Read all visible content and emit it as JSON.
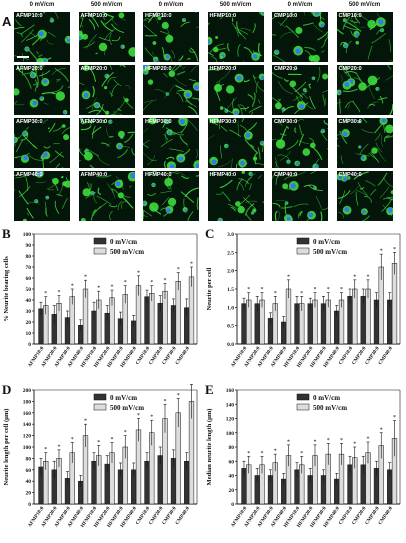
{
  "panel_a": {
    "letter": "A",
    "column_headers": [
      "0 mV/cm",
      "500 mV/cm",
      "0 mV/cm",
      "500 mV/cm",
      "0 mV/cm",
      "500 mV/cm"
    ],
    "row_labels": [
      [
        "AFMP10:0",
        "AFMP10:0",
        "HFMP10:0",
        "HFMP10:0",
        "CMP10:0",
        "CMP10:0"
      ],
      [
        "AFMP20:0",
        "AFMP20:0",
        "HFMP20:0",
        "HFMP20:0",
        "CMP20:0",
        "CMP20:0"
      ],
      [
        "AFMP30:0",
        "AFMP30:0",
        "HFMP30:0",
        "HFMP30:0",
        "CMP30:0",
        "CMP30:0"
      ],
      [
        "AFMP40:0",
        "AFMP40:0",
        "HFMP40:0",
        "HFMP40:0",
        "CMP40:0",
        "CMP40:0"
      ]
    ],
    "tile_bg": "#04150a",
    "neurite_color": "#3ddc3d",
    "nucleus_color": "#3a6cff"
  },
  "colors": {
    "bar_dark": "#333333",
    "bar_light": "#dddddd",
    "axis": "#111111"
  },
  "chart_data": [
    {
      "id": "B",
      "letter": "B",
      "type": "bar",
      "categories": [
        "AFMP10:0",
        "AFMP20:0",
        "AFMP30:0",
        "AFMP40:0",
        "HFMP10:0",
        "HFMP20:0",
        "HFMP30:0",
        "HFMP40:0",
        "CMP10:0",
        "CMP20:0",
        "CMP30:0",
        "CMP40:0"
      ],
      "series": [
        {
          "name": "0 mV/cm",
          "values": [
            32,
            27,
            24,
            17,
            30,
            28,
            23,
            21,
            43,
            37,
            35,
            33
          ],
          "errors": [
            6,
            8,
            6,
            5,
            8,
            7,
            6,
            5,
            6,
            7,
            6,
            8
          ]
        },
        {
          "name": "500 mV/cm",
          "values": [
            35,
            37,
            43,
            50,
            40,
            42,
            45,
            53,
            46,
            48,
            57,
            61
          ],
          "errors": [
            8,
            7,
            7,
            8,
            8,
            7,
            8,
            9,
            7,
            7,
            8,
            9
          ]
        }
      ],
      "ylabel": "% Neurite bearing cells",
      "ylim": [
        0,
        100
      ],
      "yticks": [
        0,
        10,
        20,
        30,
        40,
        50,
        60,
        70,
        80,
        90,
        100
      ],
      "legend": "top-left"
    },
    {
      "id": "C",
      "letter": "C",
      "type": "bar",
      "categories": [
        "AFMP10:0",
        "AFMP20:0",
        "AFMP30:0",
        "AFMP40:0",
        "HFMP10:0",
        "HFMP20:0",
        "HFMP30:0",
        "HFMP40:0",
        "CMP10:0",
        "CMP20:0",
        "CMP30:0",
        "CMP40:0"
      ],
      "series": [
        {
          "name": "0 mV/cm",
          "values": [
            1.1,
            1.1,
            0.7,
            0.6,
            1.1,
            1.1,
            1.1,
            0.9,
            1.3,
            1.3,
            1.2,
            1.2
          ],
          "errors": [
            0.15,
            0.2,
            0.15,
            0.15,
            0.2,
            0.15,
            0.2,
            0.15,
            0.2,
            0.2,
            0.2,
            0.2
          ]
        },
        {
          "name": "500 mV/cm",
          "values": [
            1.2,
            1.2,
            1.1,
            1.5,
            1.1,
            1.2,
            1.2,
            1.2,
            1.5,
            1.5,
            2.1,
            2.2
          ],
          "errors": [
            0.2,
            0.2,
            0.2,
            0.25,
            0.2,
            0.2,
            0.2,
            0.2,
            0.25,
            0.25,
            0.35,
            0.3
          ]
        }
      ],
      "ylabel": "Neurite per cell",
      "ylim": [
        0,
        3.0
      ],
      "yticks": [
        0.0,
        0.5,
        1.0,
        1.5,
        2.0,
        2.5,
        3.0
      ],
      "legend": "top-left"
    },
    {
      "id": "D",
      "letter": "D",
      "type": "bar",
      "categories": [
        "AFMP10:0",
        "AFMP20:0",
        "AFMP30:0",
        "AFMP40:0",
        "HFMP10:0",
        "HFMP20:0",
        "HFMP30:0",
        "HFMP40:0",
        "CMP10:0",
        "CMP20:0",
        "CMP30:0",
        "CMP40:0"
      ],
      "series": [
        {
          "name": "0 mV/cm",
          "values": [
            65,
            60,
            45,
            40,
            75,
            70,
            60,
            60,
            75,
            85,
            80,
            75
          ],
          "errors": [
            15,
            15,
            12,
            10,
            15,
            15,
            12,
            12,
            15,
            15,
            15,
            15
          ]
        },
        {
          "name": "500 mV/cm",
          "values": [
            75,
            80,
            90,
            120,
            85,
            90,
            100,
            130,
            125,
            150,
            160,
            180
          ],
          "errors": [
            15,
            15,
            18,
            20,
            18,
            18,
            20,
            20,
            22,
            25,
            25,
            30
          ]
        }
      ],
      "ylabel": "Neurite length per cell (µm)",
      "ylim": [
        0,
        200
      ],
      "yticks": [
        0,
        20,
        40,
        60,
        80,
        100,
        120,
        140,
        160,
        180,
        200
      ],
      "legend": "top-left"
    },
    {
      "id": "E",
      "letter": "E",
      "type": "bar",
      "categories": [
        "AFMP10:0",
        "AFMP20:0",
        "AFMP30:0",
        "AFMP40:0",
        "HFMP10:0",
        "HFMP20:0",
        "HFMP30:0",
        "HFMP40:0",
        "CMP10:0",
        "CMP20:0",
        "CMP30:0",
        "CMP40:0"
      ],
      "series": [
        {
          "name": "0 mV/cm",
          "values": [
            50,
            40,
            40,
            35,
            48,
            40,
            40,
            35,
            55,
            55,
            50,
            48
          ],
          "errors": [
            10,
            10,
            8,
            8,
            10,
            10,
            8,
            8,
            12,
            12,
            10,
            10
          ]
        },
        {
          "name": "500 mV/cm",
          "values": [
            55,
            55,
            58,
            68,
            55,
            68,
            70,
            70,
            65,
            72,
            82,
            92
          ],
          "errors": [
            12,
            12,
            12,
            15,
            12,
            15,
            15,
            15,
            15,
            15,
            18,
            25
          ]
        }
      ],
      "ylabel": "Median neurite length (µm)",
      "ylim": [
        0,
        160
      ],
      "yticks": [
        0,
        20,
        40,
        60,
        80,
        100,
        120,
        140,
        160
      ],
      "legend": "top-left"
    }
  ]
}
